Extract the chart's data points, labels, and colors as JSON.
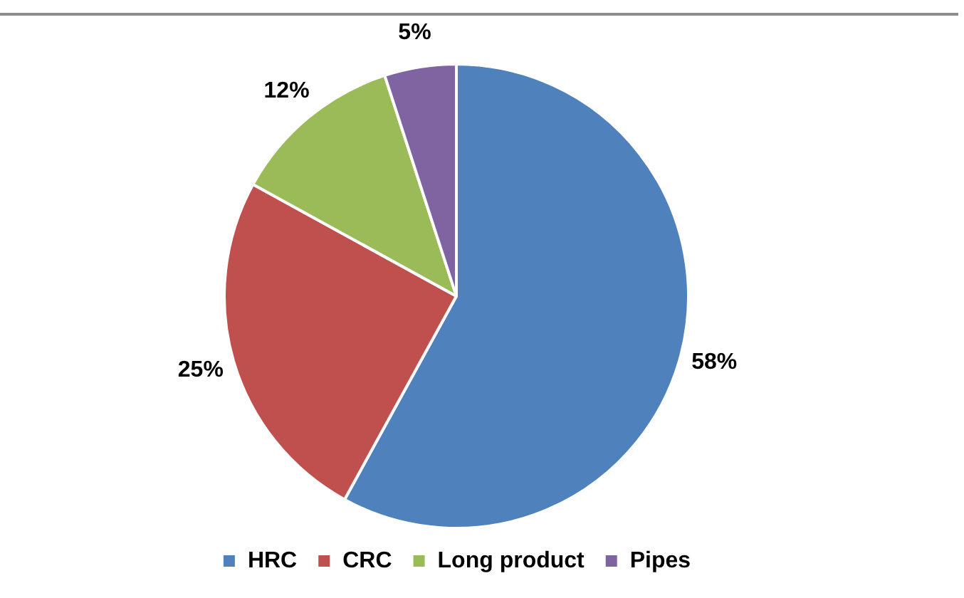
{
  "chart_data": {
    "type": "pie",
    "categories": [
      "HRC",
      "CRC",
      "Long product",
      "Pipes"
    ],
    "values": [
      58,
      25,
      12,
      5
    ],
    "colors": [
      "#4f81bd",
      "#c0504d",
      "#9bbb59",
      "#8064a2"
    ],
    "value_labels": [
      "58%",
      "25%",
      "12%",
      "5%"
    ],
    "legend": "bottom"
  }
}
